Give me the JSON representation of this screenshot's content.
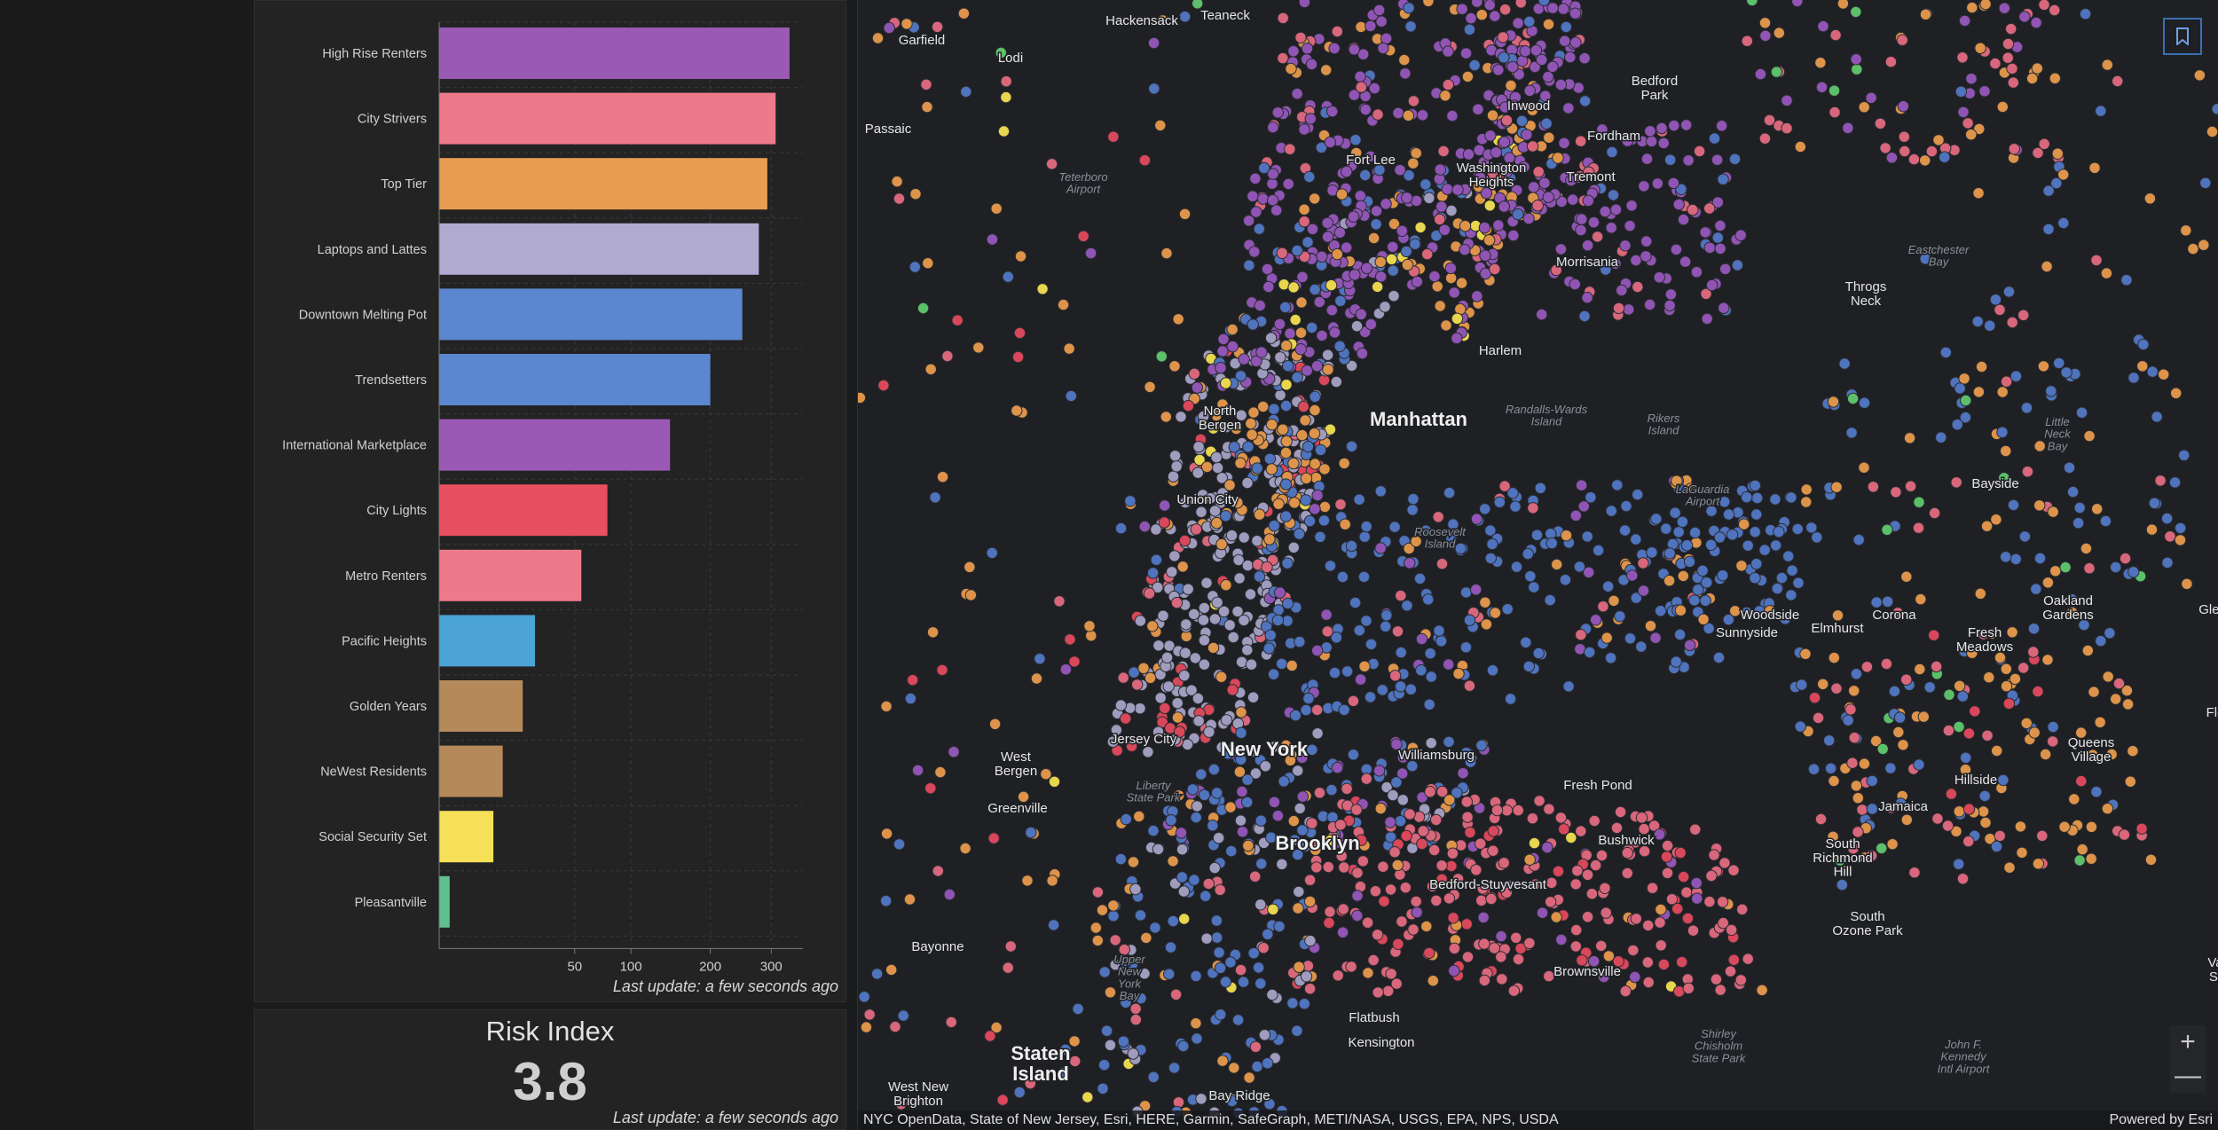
{
  "chart_data": {
    "type": "bar",
    "orientation": "horizontal",
    "x_scale": "sqrt",
    "categories": [
      "High Rise Renters",
      "City Strivers",
      "Top Tier",
      "Laptops and Lattes",
      "Downtown Melting Pot",
      "Trendsetters",
      "International Marketplace",
      "City Lights",
      "Metro Renters",
      "Pacific Heights",
      "Golden Years",
      "NeWest Residents",
      "Social Security Set",
      "Pleasantville"
    ],
    "values": [
      334,
      308,
      293,
      278,
      250,
      200,
      145,
      77,
      55,
      25,
      19,
      11,
      8,
      0.3
    ],
    "colors": [
      "#9b59b6",
      "#ec7a8a",
      "#e89d50",
      "#b0a9d0",
      "#5b87d0",
      "#5b87d0",
      "#9b59b6",
      "#e9505f",
      "#ec7a8a",
      "#4ba3d6",
      "#b5895a",
      "#b5895a",
      "#f6e058",
      "#5fbf8f"
    ],
    "ticks": [
      50,
      100,
      200,
      300
    ],
    "xlim": [
      0,
      360
    ],
    "title": "",
    "xlabel": "",
    "ylabel": "",
    "grid": true
  },
  "chart_panel": {
    "last_update": "Last update: a few seconds ago"
  },
  "risk_panel": {
    "title": "Risk Index",
    "value": "3.8",
    "last_update": "Last update: a few seconds ago"
  },
  "map": {
    "labels_major": [
      "Manhattan",
      "New York",
      "Brooklyn",
      "Staten\nIsland"
    ],
    "labels_minor": [
      "Hackensack",
      "Teaneck",
      "Garfield",
      "Lodi",
      "Passaic",
      "Bedford\nPark",
      "Inwood",
      "Fordham",
      "Fort Lee",
      "Washington\nHeights",
      "Tremont",
      "Morrisania",
      "Throgs\nNeck",
      "Harlem",
      "North\nBergen",
      "Union City",
      "Bayside",
      "Woodside",
      "Elmhurst",
      "Corona",
      "Sunnyside",
      "Oakland\nGardens",
      "Glen O",
      "Fresh\nMeadows",
      "West\nBergen",
      "Jersey City",
      "Williamsburg",
      "Fresh Pond",
      "Queens\nVillage",
      "Hillside",
      "Greenville",
      "Jamaica",
      "Bushwick",
      "South\nRichmond\nHill",
      "Bedford-Stuyvesant",
      "South\nOzone Park",
      "Bayonne",
      "Brownsville",
      "Flatbush",
      "Kensington",
      "West New\nBrighton",
      "Bay Ridge",
      "Flo",
      "Va\nSt"
    ],
    "labels_water": [
      "Teterboro\nAirport",
      "Eastchester\nBay",
      "Randalls-Wards\nIsland",
      "Rikers\nIsland",
      "Little\nNeck\nBay",
      "LaGuardia\nAirport",
      "Roosevelt\nIsland",
      "Liberty\nState Park",
      "Upper\nNew\nYork\nBay",
      "Shirley\nChisholm\nState Park",
      "John F.\nKennedy\nIntl Airport"
    ],
    "attribution": "NYC OpenData, State of New Jersey, Esri, HERE, Garmin, SafeGraph, METI/NASA, USGS, EPA, NPS, USDA",
    "powered_by": "Powered by Esri",
    "zoom_in": "+",
    "zoom_out": "—",
    "segment_colors": {
      "purple": "#9055b4",
      "pink": "#d9677c",
      "orange": "#dd944a",
      "lavender": "#a09cbe",
      "blue": "#4f73bd",
      "red": "#d9475a",
      "yellow": "#e7d64e",
      "green": "#5cc06a"
    }
  }
}
